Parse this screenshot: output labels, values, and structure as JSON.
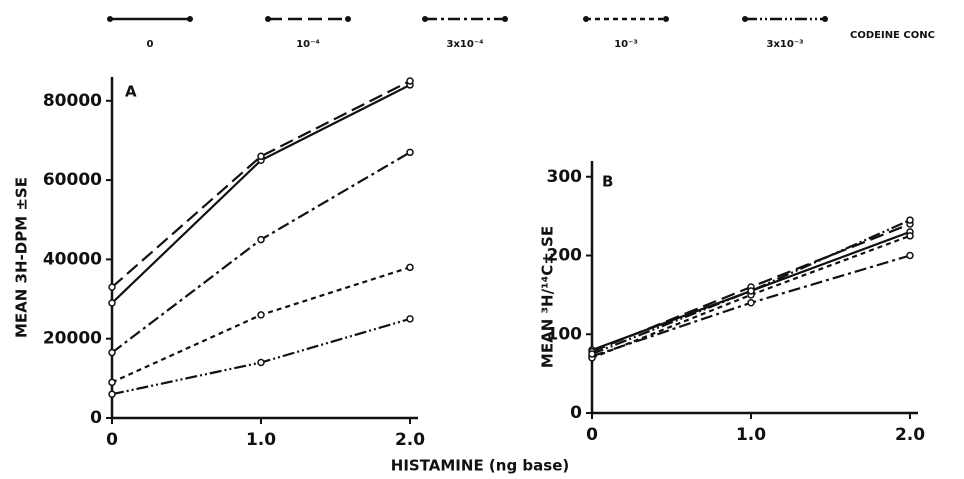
{
  "legend": {
    "title": "CODEINE CONC",
    "items": [
      "0",
      "10⁻⁴",
      "3x10⁻⁴",
      "10⁻³",
      "3x10⁻³"
    ]
  },
  "x_label": "HISTAMINE (ng base)",
  "chart_data": [
    {
      "type": "line",
      "panel_label": "A",
      "y_label": "MEAN 3H-DPM ±SE",
      "color": "#111",
      "x": [
        0,
        1,
        2
      ],
      "xlim": [
        0,
        2
      ],
      "xticks": [
        0,
        {
          "value": 1,
          "label": "1.0"
        },
        {
          "value": 2,
          "label": "2.0"
        }
      ],
      "ylim": [
        0,
        86000
      ],
      "yticks": [
        0,
        20000,
        40000,
        60000,
        80000
      ],
      "series": [
        {
          "dash": "solid",
          "values": [
            29000,
            65000,
            84000
          ]
        },
        {
          "dash": "14,6",
          "values": [
            33000,
            66000,
            85000
          ]
        },
        {
          "dash": "12,4,3,4",
          "values": [
            16500,
            45000,
            67000
          ]
        },
        {
          "dash": "5,4",
          "values": [
            9000,
            26000,
            38000
          ]
        },
        {
          "dash": "12,3,2,3,2,3",
          "values": [
            6000,
            14000,
            25000
          ]
        }
      ]
    },
    {
      "type": "line",
      "panel_label": "B",
      "y_label": "MEAN ³H/¹⁴C± SE",
      "color": "#111",
      "x": [
        0,
        1,
        2
      ],
      "xlim": [
        0,
        2
      ],
      "xticks": [
        0,
        {
          "value": 1,
          "label": "1.0"
        },
        {
          "value": 2,
          "label": "2.0"
        }
      ],
      "ylim": [
        0,
        320
      ],
      "yticks": [
        0,
        100,
        200,
        300
      ],
      "series": [
        {
          "dash": "solid",
          "values": [
            80,
            155,
            230
          ]
        },
        {
          "dash": "14,6",
          "values": [
            78,
            160,
            240
          ]
        },
        {
          "dash": "12,4,3,4",
          "values": [
            72,
            140,
            200
          ]
        },
        {
          "dash": "5,4",
          "values": [
            70,
            150,
            225
          ]
        },
        {
          "dash": "12,3,2,3,2,3",
          "values": [
            75,
            155,
            245
          ]
        }
      ]
    }
  ]
}
